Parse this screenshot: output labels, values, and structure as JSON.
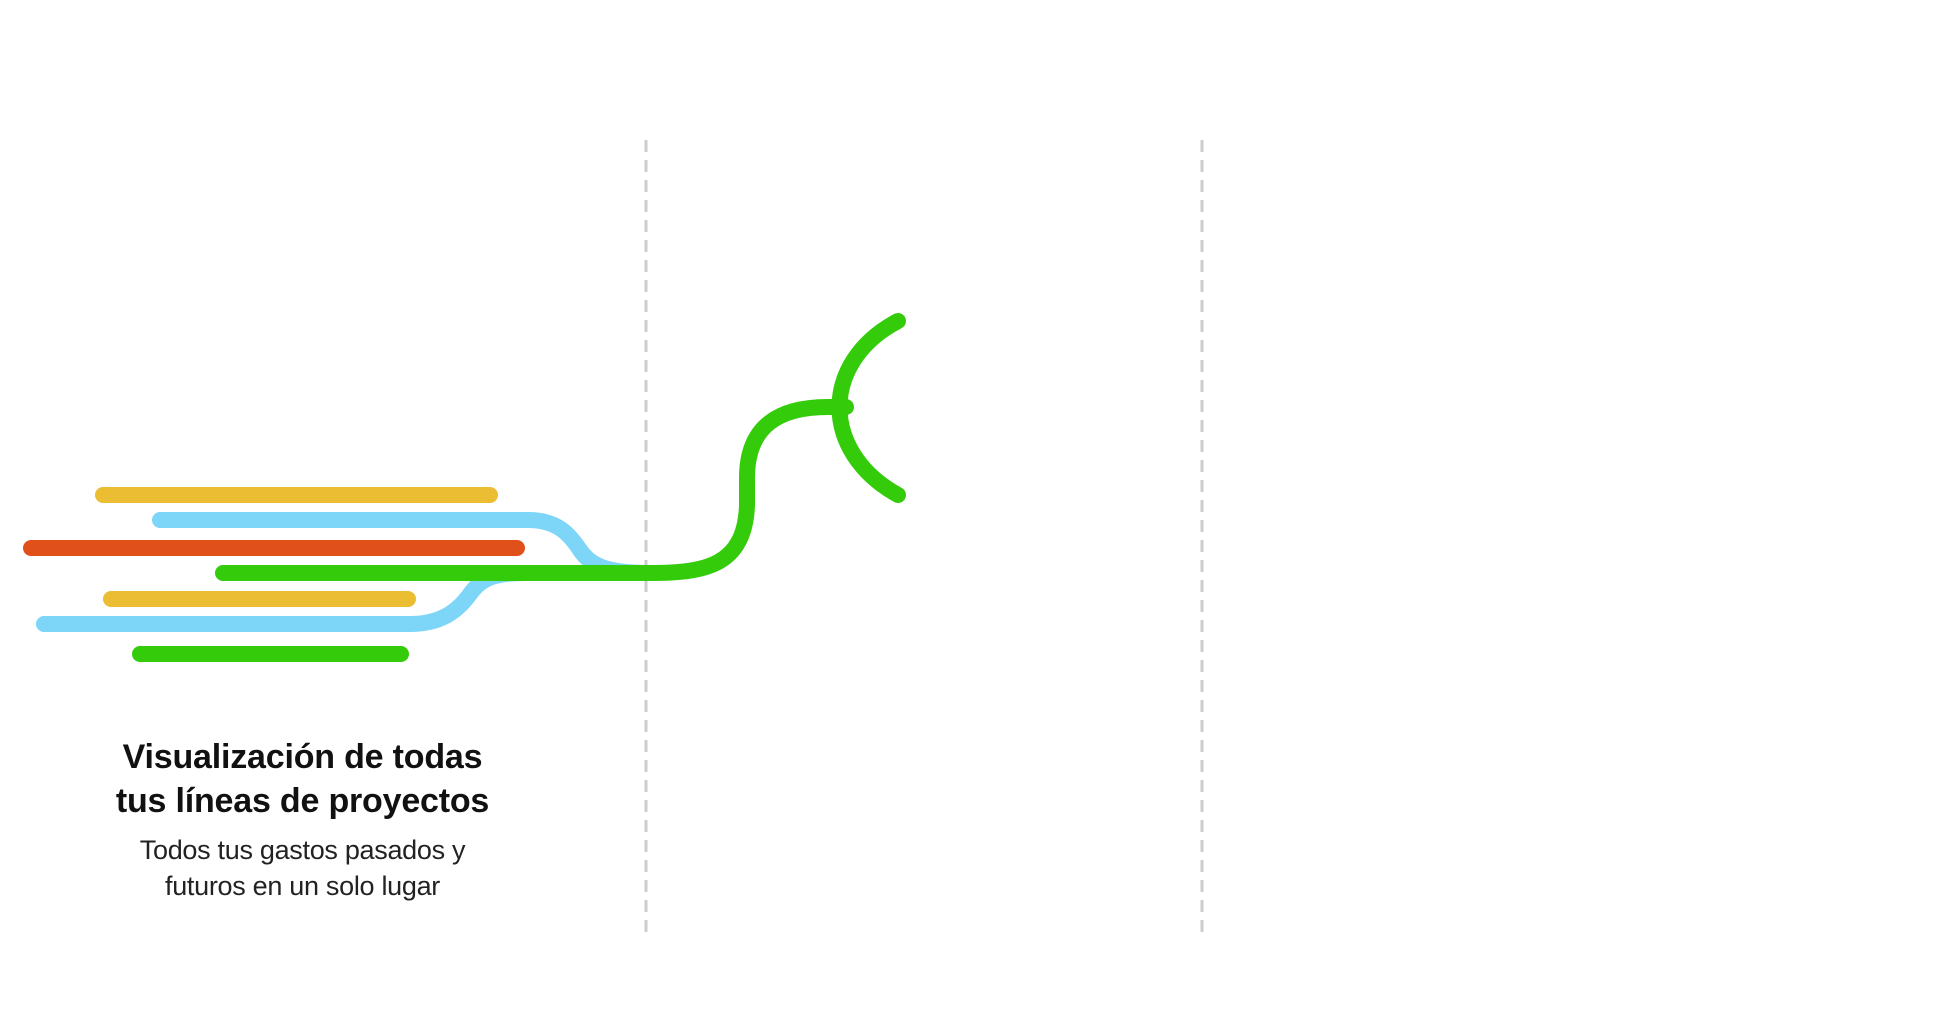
{
  "colors": {
    "yellow": "#ebbd32",
    "blue": "#7dd6f8",
    "red": "#e0501a",
    "green": "#34cc0a",
    "divider": "#cccccc",
    "text": "#111111"
  },
  "caption": {
    "title_line1": "Visualización de todas",
    "title_line2": "tus líneas de proyectos",
    "subtitle_line1": "Todos tus gastos pasados y",
    "subtitle_line2": "futuros en un solo lugar"
  }
}
